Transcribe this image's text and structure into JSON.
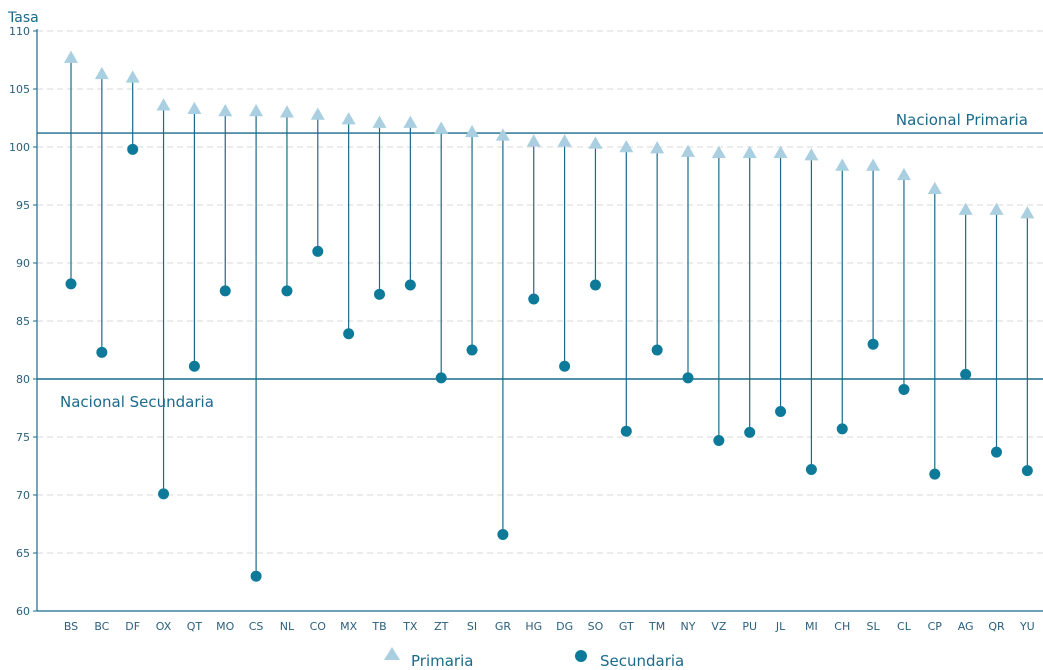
{
  "chart_data": {
    "type": "scatter",
    "ylabel": "Tasa",
    "ylim": [
      60,
      110
    ],
    "yticks": [
      60,
      65,
      70,
      75,
      80,
      85,
      90,
      95,
      100,
      105,
      110
    ],
    "grid": "horizontal-dashed",
    "categories": [
      "BS",
      "BC",
      "DF",
      "OX",
      "QT",
      "MO",
      "CS",
      "NL",
      "CO",
      "MX",
      "TB",
      "TX",
      "ZT",
      "SI",
      "GR",
      "HG",
      "DG",
      "SO",
      "GT",
      "TM",
      "NY",
      "VZ",
      "PU",
      "JL",
      "MI",
      "CH",
      "SL",
      "CL",
      "CP",
      "AG",
      "QR",
      "YU"
    ],
    "series": [
      {
        "name": "Primaria",
        "marker": "triangle",
        "color": "#a9cfe0",
        "values": [
          107.7,
          106.3,
          106.0,
          103.6,
          103.3,
          103.1,
          103.1,
          103.0,
          102.8,
          102.4,
          102.1,
          102.1,
          101.6,
          101.3,
          101.0,
          100.5,
          100.5,
          100.3,
          100.0,
          99.9,
          99.6,
          99.5,
          99.5,
          99.5,
          99.3,
          98.4,
          98.4,
          97.6,
          96.4,
          94.6,
          94.6,
          94.3
        ]
      },
      {
        "name": "Secundaria",
        "marker": "circle",
        "color": "#0e7a99",
        "values": [
          88.2,
          82.3,
          99.8,
          70.1,
          81.1,
          87.6,
          63.0,
          87.6,
          91.0,
          83.9,
          87.3,
          88.1,
          80.1,
          82.5,
          66.6,
          86.9,
          81.1,
          88.1,
          75.5,
          82.5,
          80.1,
          74.7,
          75.4,
          77.2,
          72.2,
          75.7,
          83.0,
          79.1,
          71.8,
          80.4,
          73.7,
          72.1
        ]
      }
    ],
    "reference_lines": [
      {
        "label": "Nacional Primaria",
        "value": 101.2
      },
      {
        "label": "Nacional Secundaria",
        "value": 80.0
      }
    ],
    "legend": {
      "placement": "bottom-center",
      "entries": [
        "Primaria",
        "Secundaria"
      ]
    },
    "colors": {
      "axis": "#1a6a8a",
      "stem": "#1a6a8a",
      "grid": "#d9d9d9",
      "text": "#2b5f7c"
    }
  }
}
